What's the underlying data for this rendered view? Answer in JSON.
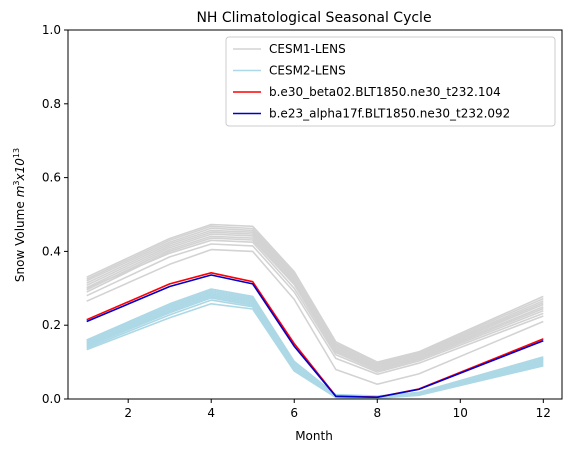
{
  "chart_data": {
    "type": "line",
    "title": "NH Climatological Seasonal Cycle",
    "xlabel": "Month",
    "ylabel_prefix": "Snow Volume",
    "ylabel_unit_base": "m",
    "ylabel_unit_exp": "3",
    "ylabel_unit_mid": "x10",
    "ylabel_unit_exp2": "13",
    "xlim": [
      0.55,
      12.45
    ],
    "ylim": [
      0,
      1.0
    ],
    "xticks": [
      2,
      4,
      6,
      8,
      10,
      12
    ],
    "yticks": [
      0.0,
      0.2,
      0.4,
      0.6,
      0.8,
      1.0
    ],
    "ytick_labels": [
      "0.0",
      "0.2",
      "0.4",
      "0.6",
      "0.8",
      "1.0"
    ],
    "x": [
      1,
      3,
      4,
      5,
      6,
      7,
      8,
      9,
      12
    ],
    "legend": {
      "placement": "top-right",
      "entries": [
        {
          "label": "CESM1-LENS",
          "color": "#d3d3d3"
        },
        {
          "label": "CESM2-LENS",
          "color": "#add8e6"
        },
        {
          "label": "b.e30_beta02.BLT1850.ne30_t232.104",
          "color": "#ff0000"
        },
        {
          "label": "b.e23_alpha17f.BLT1850.ne30_t232.092",
          "color": "#0000cc"
        }
      ]
    },
    "ensembles": [
      {
        "name": "CESM1-LENS",
        "color": "#d3d3d3",
        "members": [
          [
            0.33,
            0.435,
            0.473,
            0.468,
            0.345,
            0.155,
            0.1,
            0.128,
            0.278
          ],
          [
            0.325,
            0.43,
            0.468,
            0.462,
            0.34,
            0.15,
            0.098,
            0.125,
            0.272
          ],
          [
            0.32,
            0.425,
            0.463,
            0.457,
            0.335,
            0.146,
            0.094,
            0.122,
            0.266
          ],
          [
            0.314,
            0.42,
            0.457,
            0.452,
            0.33,
            0.142,
            0.091,
            0.119,
            0.261
          ],
          [
            0.308,
            0.415,
            0.452,
            0.447,
            0.325,
            0.138,
            0.087,
            0.116,
            0.256
          ],
          [
            0.302,
            0.41,
            0.447,
            0.442,
            0.32,
            0.134,
            0.084,
            0.113,
            0.25
          ],
          [
            0.296,
            0.405,
            0.441,
            0.436,
            0.315,
            0.13,
            0.08,
            0.11,
            0.245
          ],
          [
            0.29,
            0.4,
            0.436,
            0.431,
            0.31,
            0.126,
            0.077,
            0.107,
            0.239
          ],
          [
            0.3,
            0.395,
            0.43,
            0.425,
            0.3,
            0.12,
            0.073,
            0.103,
            0.232
          ],
          [
            0.28,
            0.385,
            0.42,
            0.415,
            0.29,
            0.11,
            0.067,
            0.097,
            0.225
          ],
          [
            0.265,
            0.365,
            0.405,
            0.4,
            0.27,
            0.08,
            0.04,
            0.068,
            0.21
          ]
        ]
      },
      {
        "name": "CESM2-LENS",
        "color": "#add8e6",
        "members": [
          [
            0.16,
            0.258,
            0.298,
            0.278,
            0.102,
            0.012,
            0.008,
            0.018,
            0.114
          ],
          [
            0.157,
            0.254,
            0.294,
            0.274,
            0.099,
            0.011,
            0.007,
            0.017,
            0.111
          ],
          [
            0.154,
            0.25,
            0.29,
            0.27,
            0.096,
            0.01,
            0.006,
            0.016,
            0.108
          ],
          [
            0.151,
            0.246,
            0.286,
            0.266,
            0.093,
            0.009,
            0.005,
            0.015,
            0.105
          ],
          [
            0.148,
            0.242,
            0.282,
            0.262,
            0.09,
            0.008,
            0.004,
            0.014,
            0.102
          ],
          [
            0.145,
            0.238,
            0.278,
            0.258,
            0.087,
            0.007,
            0.004,
            0.013,
            0.099
          ],
          [
            0.142,
            0.234,
            0.274,
            0.254,
            0.084,
            0.006,
            0.003,
            0.012,
            0.096
          ],
          [
            0.138,
            0.228,
            0.268,
            0.25,
            0.08,
            0.005,
            0.003,
            0.011,
            0.093
          ],
          [
            0.134,
            0.22,
            0.258,
            0.244,
            0.076,
            0.004,
            0.002,
            0.01,
            0.09
          ]
        ]
      }
    ],
    "series": [
      {
        "name": "b.e30_beta02.BLT1850.ne30_t232.104",
        "color": "#ff0000",
        "values": [
          0.215,
          0.312,
          0.342,
          0.318,
          0.15,
          0.008,
          0.005,
          0.027,
          0.163
        ]
      },
      {
        "name": "b.e23_alpha17f.BLT1850.ne30_t232.092",
        "color": "#0000cc",
        "values": [
          0.21,
          0.305,
          0.336,
          0.312,
          0.143,
          0.007,
          0.005,
          0.026,
          0.158
        ]
      }
    ]
  }
}
